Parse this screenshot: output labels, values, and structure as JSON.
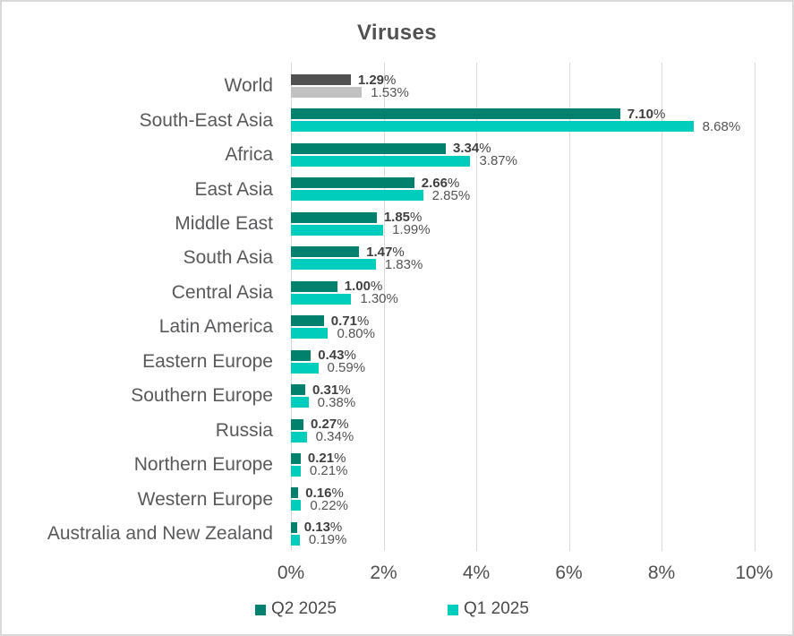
{
  "title": "Viruses",
  "colors": {
    "q2_2025": "#00816E",
    "q1_2025": "#00CDBC",
    "world_q2": "#515151",
    "world_q1": "#C1C1C1",
    "gridline": "#D9D9D9",
    "border": "#D9D9D9",
    "title_text": "#515151",
    "category_text": "#58595B",
    "tick_text": "#4F4F4F",
    "value_bold_text": "#3F3F3F",
    "value_text": "#545454",
    "legend_text": "#4A4A4A"
  },
  "chart_data": {
    "type": "bar",
    "orientation": "horizontal",
    "title": "Viruses",
    "xlabel": "",
    "ylabel": "",
    "xlim": [
      0,
      10
    ],
    "x_ticks": [
      "0%",
      "2%",
      "4%",
      "6%",
      "8%",
      "10%"
    ],
    "grid": true,
    "legend_position": "bottom",
    "percent_suffix": "%",
    "categories": [
      "World",
      "South-East Asia",
      "Africa",
      "East Asia",
      "Middle East",
      "South Asia",
      "Central Asia",
      "Latin America",
      "Eastern Europe",
      "Southern Europe",
      "Russia",
      "Northern Europe",
      "Western Europe",
      "Australia and New Zealand"
    ],
    "series": [
      {
        "name": "Q2 2025",
        "color": "#00816E",
        "values": [
          1.29,
          7.1,
          3.34,
          2.66,
          1.85,
          1.47,
          1.0,
          0.71,
          0.43,
          0.31,
          0.27,
          0.21,
          0.16,
          0.13
        ],
        "labels": [
          "1.29",
          "7.10",
          "3.34",
          "2.66",
          "1.85",
          "1.47",
          "1.00",
          "0.71",
          "0.43",
          "0.31",
          "0.27",
          "0.21",
          "0.16",
          "0.13"
        ]
      },
      {
        "name": "Q1 2025",
        "color": "#00CDBC",
        "values": [
          1.53,
          8.68,
          3.87,
          2.85,
          1.99,
          1.83,
          1.3,
          0.8,
          0.59,
          0.38,
          0.34,
          0.21,
          0.22,
          0.19
        ],
        "labels": [
          "1.53",
          "8.68",
          "3.87",
          "2.85",
          "1.99",
          "1.83",
          "1.30",
          "0.80",
          "0.59",
          "0.38",
          "0.34",
          "0.21",
          "0.22",
          "0.19"
        ]
      }
    ],
    "override_colors": [
      {
        "index": 0,
        "colors": [
          "#515151",
          "#C1C1C1"
        ]
      }
    ]
  }
}
